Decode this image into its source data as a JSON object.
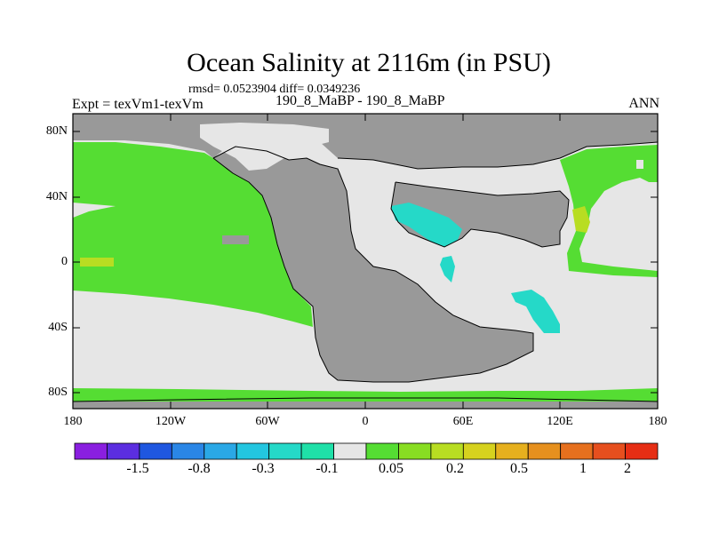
{
  "title": "Ocean Salinity at 2116m (in PSU)",
  "stats": "rmsd= 0.0523904 diff= 0.0349236",
  "left_label": "Expt = texVm1-texVm",
  "center_label": "190_8_MaBP - 190_8_MaBP",
  "right_label": "ANN",
  "axes": {
    "lat_ticks": [
      "80N",
      "40N",
      "0",
      "40S",
      "80S"
    ],
    "lon_ticks": [
      "180",
      "120W",
      "60W",
      "0",
      "60E",
      "120E",
      "180"
    ]
  },
  "colorbar": {
    "colors": [
      "#8a1fe0",
      "#5b2ee0",
      "#1f57e0",
      "#2a86e6",
      "#2aa8e6",
      "#23c6e0",
      "#25d9c8",
      "#1fe0a8",
      "#e6e6e6",
      "#55dd33",
      "#88dd22",
      "#b8dd22",
      "#d6d21e",
      "#e6b01e",
      "#e6901e",
      "#e6701e",
      "#e64f1e",
      "#e62e14"
    ],
    "labels": [
      "-1.5",
      "-0.8",
      "-0.3",
      "-0.1",
      "0.05",
      "0.2",
      "0.5",
      "1",
      "2"
    ]
  },
  "colors": {
    "land": "#999999",
    "ocean_neutral": "#e6e6e6",
    "positive_small": "#55dd33",
    "positive_mid": "#b8dd22",
    "positive_high": "#d6d21e",
    "negative_small": "#25d9c8"
  }
}
